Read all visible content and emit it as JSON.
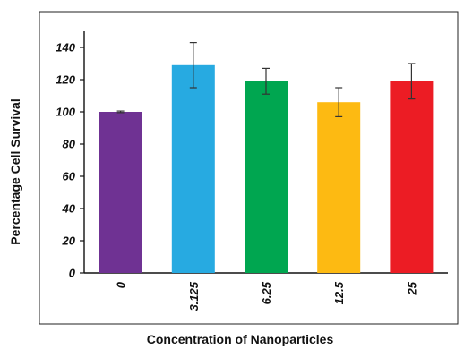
{
  "chart_data": {
    "type": "bar",
    "title": "",
    "xlabel": "Concentration of Nanoparticles",
    "ylabel": "Percentage Cell Survival",
    "categories": [
      "0",
      "3.125",
      "6.25",
      "12.5",
      "25"
    ],
    "values": [
      100,
      129,
      119,
      106,
      119
    ],
    "error_low": [
      99.5,
      115,
      111,
      97,
      108
    ],
    "error_high": [
      100.5,
      143,
      127,
      115,
      130
    ],
    "colors": [
      "#6f3293",
      "#27aae1",
      "#00a650",
      "#fdba12",
      "#ec1c24"
    ],
    "ylim": [
      0,
      150
    ],
    "yticks": [
      0,
      20,
      40,
      60,
      80,
      100,
      120,
      140
    ],
    "grid": false,
    "legend": "none"
  }
}
